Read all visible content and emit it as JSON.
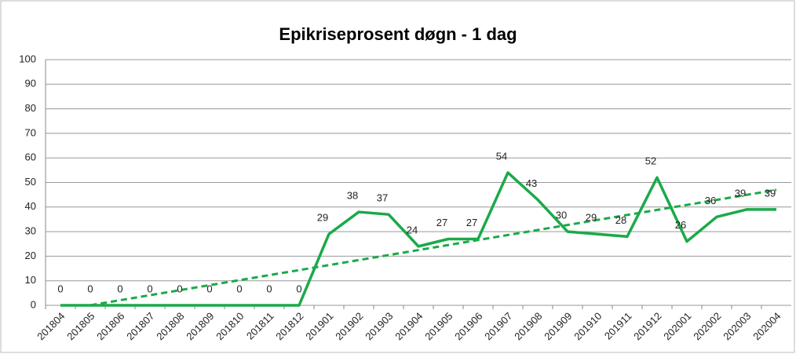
{
  "chart_data": {
    "type": "line",
    "title": "Epikriseprosent døgn - 1 dag",
    "categories": [
      "201804",
      "201805",
      "201806",
      "201807",
      "201808",
      "201809",
      "201810",
      "201811",
      "201812",
      "201901",
      "201902",
      "201903",
      "201904",
      "201905",
      "201906",
      "201907",
      "201908",
      "201909",
      "201910",
      "201911",
      "201912",
      "202001",
      "202002",
      "202003",
      "202004"
    ],
    "series": [
      {
        "name": "Epikriseprosent",
        "color": "#1aaa4a",
        "values": [
          0,
          0,
          0,
          0,
          0,
          0,
          0,
          0,
          0,
          29,
          38,
          37,
          24,
          27,
          27,
          54,
          43,
          30,
          29,
          28,
          52,
          26,
          36,
          39,
          39
        ]
      }
    ],
    "trendline": {
      "start": -2,
      "end": 47,
      "color": "#1aaa4a",
      "style": "dashed"
    },
    "ylim": [
      0,
      100
    ],
    "yticks": [
      0,
      10,
      20,
      30,
      40,
      50,
      60,
      70,
      80,
      90,
      100
    ],
    "grid": true
  }
}
